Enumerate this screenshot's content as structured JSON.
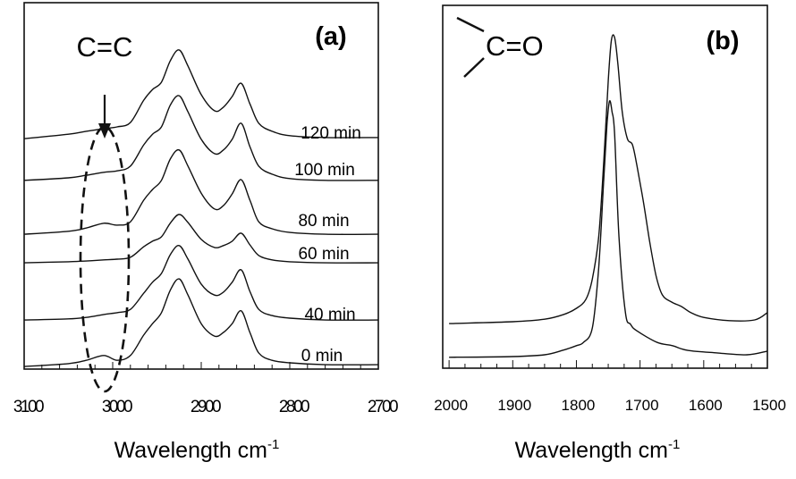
{
  "chart_data": [
    {
      "type": "line",
      "panel_label": "(a)",
      "xlabel": "Wavelength cm",
      "xlabel_superscript": "-1",
      "xlim": [
        3100,
        2700
      ],
      "xticks": [
        3100,
        3000,
        2900,
        2800,
        2700
      ],
      "ylim": [
        0,
        100
      ],
      "y_ticks_shown": false,
      "grid": false,
      "annotation": "C=C",
      "annotation_marker": "dashed-ellipse-with-arrow",
      "x": [
        3100,
        3050,
        3030,
        3010,
        2995,
        2980,
        2965,
        2955,
        2945,
        2935,
        2925,
        2915,
        2900,
        2885,
        2875,
        2865,
        2855,
        2845,
        2835,
        2820,
        2800,
        2760,
        2700
      ],
      "series": [
        {
          "name": "0 min",
          "values": [
            0.7,
            1.5,
            2.4,
            3.7,
            2.4,
            3.7,
            9.3,
            12.4,
            15.4,
            21.5,
            24.6,
            20.2,
            12.4,
            9.0,
            10.0,
            12.4,
            15.9,
            10.0,
            4.4,
            2.4,
            1.7,
            1.2,
            1.2
          ]
        },
        {
          "name": "40 min",
          "values": [
            13.4,
            13.7,
            14.1,
            14.9,
            15.4,
            16.3,
            20.7,
            23.7,
            26.1,
            31.2,
            33.7,
            30.0,
            23.2,
            20.2,
            21.0,
            23.7,
            27.1,
            21.2,
            16.3,
            14.6,
            13.9,
            13.4,
            13.4
          ]
        },
        {
          "name": "60 min",
          "values": [
            29.0,
            29.3,
            29.5,
            29.8,
            30.0,
            30.5,
            33.4,
            34.9,
            36.1,
            39.8,
            42.2,
            40.0,
            35.4,
            33.2,
            33.7,
            34.9,
            37.1,
            33.9,
            31.0,
            29.8,
            29.3,
            29.0,
            29.0
          ]
        },
        {
          "name": "80 min",
          "values": [
            36.8,
            37.6,
            38.5,
            39.8,
            39.3,
            40.2,
            46.1,
            49.0,
            51.5,
            57.3,
            59.8,
            55.4,
            48.0,
            43.7,
            44.6,
            47.8,
            51.7,
            46.1,
            40.2,
            38.3,
            37.3,
            36.8,
            36.8
          ]
        },
        {
          "name": "100 min",
          "values": [
            51.5,
            52.2,
            52.9,
            53.7,
            54.1,
            55.4,
            61.2,
            64.1,
            66.1,
            72.0,
            74.6,
            70.2,
            62.7,
            58.8,
            59.8,
            62.7,
            67.1,
            60.7,
            55.4,
            53.2,
            52.0,
            51.5,
            51.5
          ]
        },
        {
          "name": "120 min",
          "values": [
            62.9,
            64.1,
            64.9,
            65.6,
            66.1,
            67.3,
            73.4,
            76.3,
            78.3,
            84.1,
            87.1,
            82.7,
            74.9,
            70.5,
            71.5,
            74.4,
            78.0,
            72.4,
            67.1,
            64.9,
            63.7,
            63.2,
            63.2
          ]
        }
      ]
    },
    {
      "type": "line",
      "panel_label": "(b)",
      "xlabel": "Wavelength cm",
      "xlabel_superscript": "-1",
      "xlim": [
        2010,
        1500
      ],
      "xticks": [
        2000,
        1900,
        1800,
        1700,
        1600,
        1500
      ],
      "ylim": [
        0,
        100
      ],
      "y_ticks_shown": false,
      "grid": false,
      "annotation": "C=O",
      "series": [
        {
          "x": [
            2000,
            1900,
            1850,
            1820,
            1800,
            1785,
            1775,
            1765,
            1757,
            1750,
            1745,
            1740,
            1735,
            1728,
            1720,
            1712,
            1705,
            1695,
            1685,
            1675,
            1665,
            1650,
            1635,
            1620,
            1600,
            1560,
            1520,
            1500
          ],
          "values": [
            12.3,
            12.8,
            13.5,
            14.8,
            16.5,
            19.0,
            24.6,
            36.2,
            57.1,
            79.3,
            90.4,
            91.1,
            84.2,
            70.7,
            63.3,
            61.6,
            55.9,
            46.1,
            35.0,
            25.6,
            20.2,
            18.2,
            17.0,
            15.3,
            14.0,
            13.1,
            13.3,
            15.3
          ]
        },
        {
          "x": [
            2000,
            1900,
            1850,
            1822,
            1800,
            1789,
            1775,
            1765,
            1757,
            1752,
            1748,
            1744,
            1740,
            1733,
            1723,
            1715,
            1705,
            1673,
            1649,
            1625,
            1579,
            1532,
            1500
          ],
          "values": [
            3.0,
            3.2,
            3.7,
            4.9,
            6.2,
            7.1,
            11.1,
            27.6,
            52.2,
            67.0,
            73.6,
            70.7,
            64.5,
            35.7,
            15.3,
            12.1,
            10.3,
            7.1,
            6.2,
            4.9,
            4.2,
            3.7,
            4.7
          ]
        }
      ]
    }
  ]
}
